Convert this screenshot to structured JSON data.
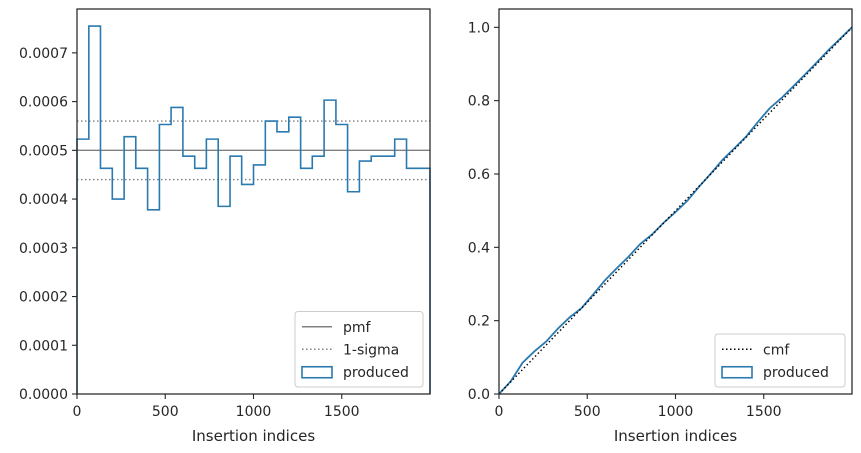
{
  "chart_data": [
    {
      "type": "histogram-step",
      "xlabel": "Insertion indices",
      "ylabel": "",
      "xlim": [
        0,
        2000
      ],
      "ylim": [
        0,
        0.00079
      ],
      "xticks": [
        0,
        500,
        1000,
        1500
      ],
      "xtick_labels": [
        "0",
        "500",
        "1000",
        "1500"
      ],
      "yticks": [
        0,
        0.0001,
        0.0002,
        0.0003,
        0.0004,
        0.0005,
        0.0006,
        0.0007
      ],
      "ytick_labels": [
        "0.0000",
        "0.0001",
        "0.0002",
        "0.0003",
        "0.0004",
        "0.0005",
        "0.0006",
        "0.0007"
      ],
      "bin_edges": [
        0,
        67,
        133,
        200,
        267,
        333,
        400,
        467,
        533,
        600,
        667,
        733,
        800,
        867,
        933,
        1000,
        1067,
        1133,
        1200,
        1267,
        1333,
        1400,
        1467,
        1533,
        1600,
        1667,
        1733,
        1800,
        1867,
        1933,
        2000
      ],
      "series": [
        {
          "name": "pmf",
          "style": "solid",
          "color": "#808080",
          "y": 0.0005
        },
        {
          "name": "1-sigma",
          "style": "dotted",
          "color": "#808080",
          "y": [
            0.00044,
            0.00056
          ]
        },
        {
          "name": "produced",
          "style": "step",
          "color": "#2a7ab0",
          "values": [
            0.000523,
            0.000755,
            0.000463,
            0.0004,
            0.000528,
            0.000463,
            0.000378,
            0.000553,
            0.000588,
            0.000488,
            0.000463,
            0.000523,
            0.000385,
            0.000488,
            0.00043,
            0.00047,
            0.00056,
            0.000538,
            0.000568,
            0.000463,
            0.000488,
            0.000603,
            0.000553,
            0.000415,
            0.000478,
            0.000488,
            0.000488,
            0.000523,
            0.000463,
            0.000463
          ]
        }
      ],
      "legend": {
        "placement": "lower right",
        "entries": [
          "pmf",
          "1-sigma",
          "produced"
        ]
      }
    },
    {
      "type": "line",
      "xlabel": "Insertion indices",
      "ylabel": "",
      "xlim": [
        0,
        2000
      ],
      "ylim": [
        0,
        1.05
      ],
      "xticks": [
        0,
        500,
        1000,
        1500
      ],
      "xtick_labels": [
        "0",
        "500",
        "1000",
        "1500"
      ],
      "yticks": [
        0,
        0.2,
        0.4,
        0.6,
        0.8,
        1.0
      ],
      "ytick_labels": [
        "0.0",
        "0.2",
        "0.4",
        "0.6",
        "0.8",
        "1.0"
      ],
      "series": [
        {
          "name": "cmf",
          "style": "dotted",
          "color": "#000000",
          "x": [
            0,
            2000
          ],
          "y": [
            0,
            1.0
          ]
        },
        {
          "name": "produced",
          "style": "solid",
          "color": "#2a7ab0",
          "x": [
            0,
            67,
            133,
            200,
            267,
            333,
            400,
            467,
            533,
            600,
            667,
            733,
            800,
            867,
            933,
            1000,
            1067,
            1133,
            1200,
            1267,
            1333,
            1400,
            1467,
            1533,
            1600,
            1667,
            1733,
            1800,
            1867,
            1933,
            2000
          ],
          "y": [
            0,
            0.035,
            0.085,
            0.116,
            0.143,
            0.178,
            0.209,
            0.234,
            0.271,
            0.31,
            0.343,
            0.374,
            0.409,
            0.435,
            0.467,
            0.496,
            0.527,
            0.565,
            0.601,
            0.639,
            0.67,
            0.702,
            0.742,
            0.779,
            0.807,
            0.839,
            0.871,
            0.904,
            0.938,
            0.969,
            1.0
          ]
        }
      ],
      "legend": {
        "placement": "lower right",
        "entries": [
          "cmf",
          "produced"
        ]
      }
    }
  ]
}
